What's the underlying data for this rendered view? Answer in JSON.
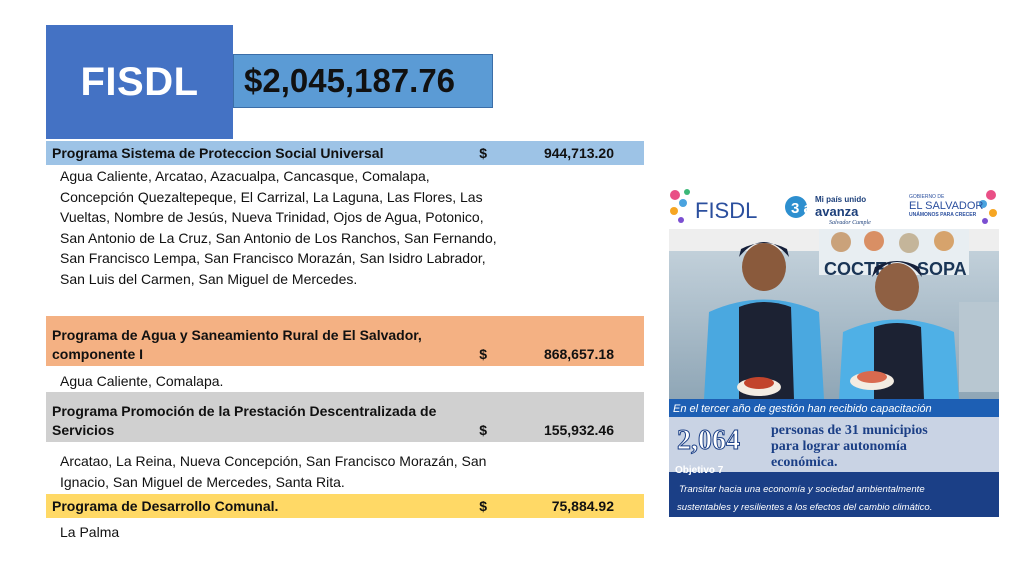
{
  "header": {
    "title": "FISDL",
    "total": "$2,045,187.76"
  },
  "programs": [
    {
      "name": "Programa Sistema de Proteccion Social Universal",
      "currency": "$",
      "amount": "944,713.20",
      "color": "#9dc3e6",
      "municipalities": "Agua Caliente, Arcatao, Azacualpa, Cancasque, Comalapa, Concepción Quezaltepeque, El Carrizal, La Laguna, Las Flores, Las Vueltas, Nombre de Jesús, Nueva Trinidad, Ojos de Agua, Potonico, San Antonio de La Cruz, San Antonio de Los Ranchos, San Fernando, San Francisco Lempa, San Francisco Morazán, San Isidro Labrador, San Luis del Carmen, San Miguel de Mercedes."
    },
    {
      "name": "Programa de Agua y Saneamiento Rural de El Salvador, componente I",
      "currency": "$",
      "amount": "868,657.18",
      "color": "#f4b183",
      "municipalities": "Agua Caliente, Comalapa."
    },
    {
      "name": "Programa Promoción de la Prestación Descentralizada de Servicios",
      "currency": "$",
      "amount": "155,932.46",
      "color": "#d0d0d0",
      "municipalities": "Arcatao, La Reina, Nueva Concepción, San Francisco Morazán, San Ignacio, San Miguel de Mercedes, Santa Rita."
    },
    {
      "name": "Programa de Desarrollo Comunal.",
      "currency": "$",
      "amount": "75,884.92",
      "color": "#ffd966",
      "municipalities": "La Palma"
    }
  ],
  "poster": {
    "brand": "FISDL",
    "years_badge": "3 años",
    "slogan_line1": "Mi país unido",
    "slogan_line2": "avanza",
    "slogan_line3": "Salvador Cumple",
    "gov_label": "GOBIERNO DE",
    "gov_name": "EL SALVADOR",
    "gov_tagline": "UNÁMONOS PARA CRECER",
    "sign_text": "COCTEL",
    "sign_text2": "SOPA",
    "headline": "En el tercer año de gestión han recibido capacitación",
    "big_number": "2,064",
    "people_text_1": "personas de 31 municipios",
    "people_text_2": "para lograr autonomía",
    "people_text_3": "económica.",
    "objective_label": "Objetivo 7",
    "objective_text_1": "Transitar hacia una economía y sociedad ambientalmente",
    "objective_text_2": "sustentables y resilientes a los efectos del cambio climático."
  }
}
